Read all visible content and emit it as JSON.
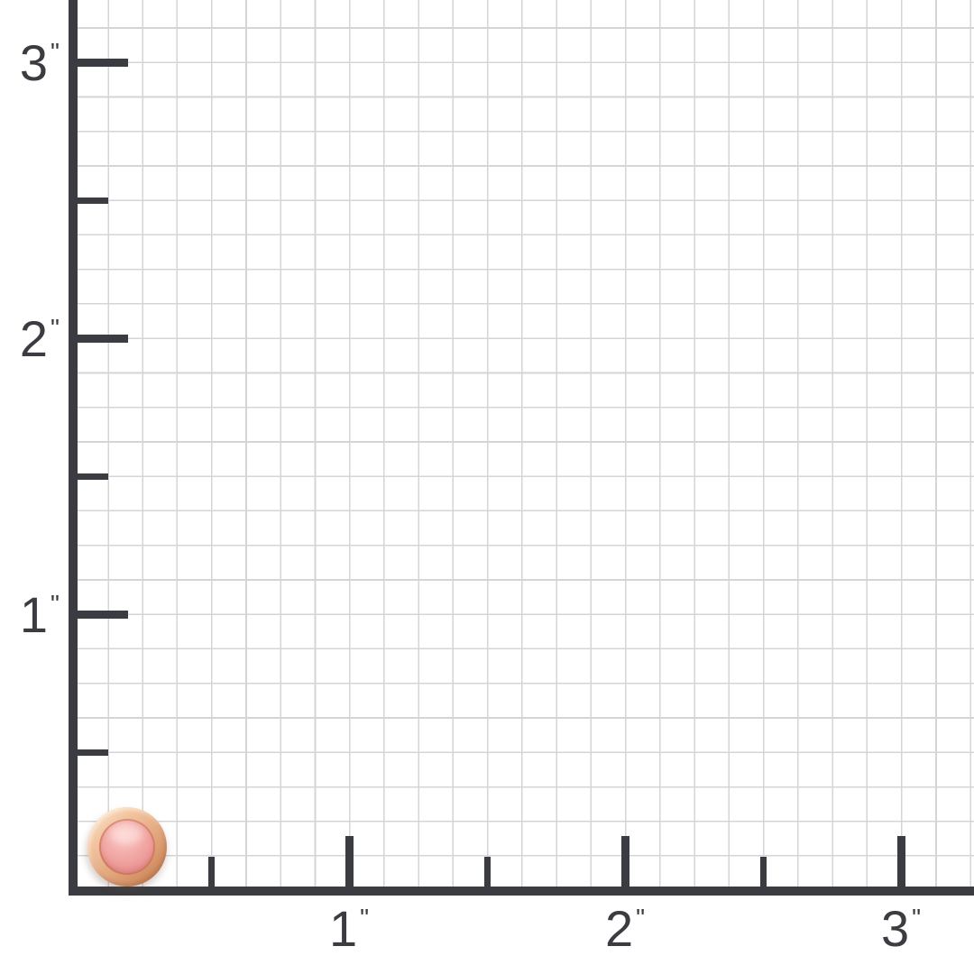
{
  "scene": {
    "background_color": "#ffffff",
    "axis_color": "#3a3c41",
    "grid_line_color": "#d4d5d7"
  },
  "ruler": {
    "unit_symbol": "\"",
    "cells_per_inch": 8,
    "x_axis": {
      "ticks": [
        {
          "value": "1"
        },
        {
          "value": "2"
        },
        {
          "value": "3"
        }
      ]
    },
    "y_axis": {
      "ticks": [
        {
          "value": "3"
        },
        {
          "value": "2"
        },
        {
          "value": "1"
        }
      ]
    }
  },
  "product": {
    "icon": "pink-gemstone-stud",
    "bezel_color": "#dda076",
    "stone_color": "#ee9e9c"
  }
}
